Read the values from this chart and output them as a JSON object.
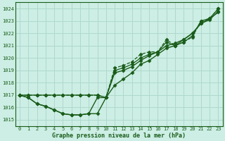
{
  "title": "Graphe pression niveau de la mer (hPa)",
  "bg_color": "#cceee4",
  "grid_color": "#b0d8cc",
  "line_color": "#1a5c1a",
  "xlim": [
    -0.5,
    23.5
  ],
  "ylim": [
    1014.5,
    1024.5
  ],
  "yticks": [
    1015,
    1016,
    1017,
    1018,
    1019,
    1020,
    1021,
    1022,
    1023,
    1024
  ],
  "xticks": [
    0,
    1,
    2,
    3,
    4,
    5,
    6,
    7,
    8,
    9,
    10,
    11,
    12,
    13,
    14,
    15,
    16,
    17,
    18,
    19,
    20,
    21,
    22,
    23
  ],
  "series": [
    {
      "y": [
        1017.0,
        1016.8,
        1016.3,
        1016.1,
        1015.8,
        1015.5,
        1015.4,
        1015.4,
        1015.5,
        1015.5,
        1016.8,
        1017.8,
        1018.3,
        1018.8,
        1019.5,
        1019.8,
        1020.3,
        1020.8,
        1021.0,
        1021.5,
        1022.0,
        1022.8,
        1023.2,
        1023.7
      ],
      "linestyle": "-",
      "marker": "D",
      "markersize": 2.5,
      "linewidth": 1.0
    },
    {
      "y": [
        1017.0,
        1016.8,
        1016.3,
        1016.1,
        1015.8,
        1015.5,
        1015.4,
        1015.4,
        1015.5,
        1016.8,
        1016.8,
        1018.8,
        1019.0,
        1019.3,
        1019.8,
        1020.2,
        1020.5,
        1021.0,
        1021.2,
        1021.5,
        1022.0,
        1022.8,
        1023.1,
        1023.8
      ],
      "linestyle": "-",
      "marker": "D",
      "markersize": 2.5,
      "linewidth": 1.0
    },
    {
      "y": [
        1017.0,
        1017.0,
        1017.0,
        1017.0,
        1017.0,
        1017.0,
        1017.0,
        1017.0,
        1017.0,
        1017.0,
        1016.8,
        1019.2,
        1019.4,
        1019.7,
        1020.3,
        1020.5,
        1020.5,
        1021.5,
        1021.0,
        1021.3,
        1021.7,
        1023.0,
        1023.2,
        1024.0
      ],
      "linestyle": "--",
      "marker": "D",
      "markersize": 2.5,
      "linewidth": 0.9
    },
    {
      "y": [
        1017.0,
        1017.0,
        1017.0,
        1017.0,
        1017.0,
        1017.0,
        1017.0,
        1017.0,
        1017.0,
        1017.0,
        1016.8,
        1019.0,
        1019.2,
        1019.5,
        1020.0,
        1020.3,
        1020.5,
        1021.3,
        1021.0,
        1021.3,
        1021.8,
        1023.0,
        1023.2,
        1024.0
      ],
      "linestyle": "-",
      "marker": "D",
      "markersize": 2.5,
      "linewidth": 0.9
    }
  ]
}
